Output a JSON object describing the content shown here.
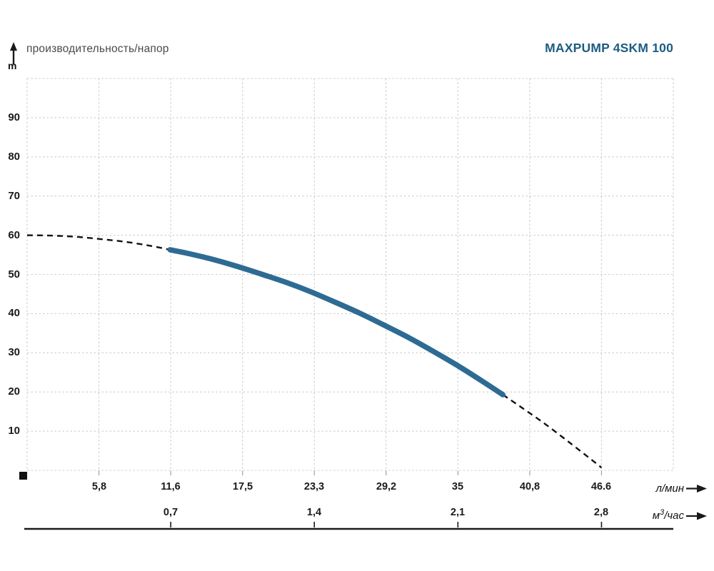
{
  "header": {
    "axis_title": "производительность/напор",
    "y_unit": "m",
    "model": "MAXPUMP 4SKM 100"
  },
  "units_display": {
    "lmin": "л/мин",
    "m3h_base": "м",
    "m3h_sup": "3",
    "m3h_rest": "/час"
  },
  "colors": {
    "curve_solid": "#2e6b94",
    "curve_dashed": "#111111",
    "grid": "#cdcdcd",
    "axis_line": "#1a1a1a",
    "tick_minor": "#a0a0a0",
    "title_blue": "#1e5c82",
    "label_gray": "#4a4a4a",
    "origin_marker": "#111111"
  },
  "chart_data": {
    "type": "line",
    "title": "производительность/напор",
    "model": "MAXPUMP 4SKM 100",
    "ylabel": "m",
    "ylim": [
      0,
      100
    ],
    "y_ticks": [
      10,
      20,
      30,
      40,
      50,
      60,
      70,
      80,
      90
    ],
    "x_axes": [
      {
        "unit": "л/мин",
        "tick_labels": [
          "5,8",
          "11,6",
          "17,5",
          "23,3",
          "29,2",
          "35",
          "40,8",
          "46.6"
        ],
        "tick_values": [
          5.8,
          11.6,
          17.5,
          23.3,
          29.2,
          35,
          40.8,
          46.6
        ],
        "max_value": 46.6
      },
      {
        "unit": "м³/час",
        "tick_labels": [
          "0,7",
          "1,4",
          "2,1",
          "2,8"
        ],
        "tick_values": [
          0.7,
          1.4,
          2.1,
          2.8
        ],
        "max_value": 2.8
      }
    ],
    "grid": {
      "visible": true,
      "style": "dashed",
      "vertical_divisions": 9,
      "horizontal_divisions": 10
    },
    "series": [
      {
        "name": "head-flow-curve",
        "solid_color": "#2e6b94",
        "dashed_color": "#111111",
        "solid_range_lmin": [
          11.6,
          38.6
        ],
        "points_lmin_m": [
          [
            0,
            60.0
          ],
          [
            2,
            59.9
          ],
          [
            4,
            59.6
          ],
          [
            6,
            59.0
          ],
          [
            8,
            58.3
          ],
          [
            10,
            57.3
          ],
          [
            11.6,
            56.3
          ],
          [
            13,
            55.4
          ],
          [
            15,
            53.9
          ],
          [
            17,
            52.1
          ],
          [
            19,
            50.1
          ],
          [
            21,
            48.0
          ],
          [
            23,
            45.6
          ],
          [
            25,
            42.9
          ],
          [
            27,
            40.1
          ],
          [
            29,
            37.0
          ],
          [
            31,
            33.8
          ],
          [
            33,
            30.3
          ],
          [
            35,
            26.6
          ],
          [
            37,
            22.6
          ],
          [
            38.6,
            19.3
          ],
          [
            40,
            16.3
          ],
          [
            42,
            11.9
          ],
          [
            44,
            7.1
          ],
          [
            46,
            2.2
          ],
          [
            46.6,
            0.7
          ]
        ]
      }
    ]
  }
}
